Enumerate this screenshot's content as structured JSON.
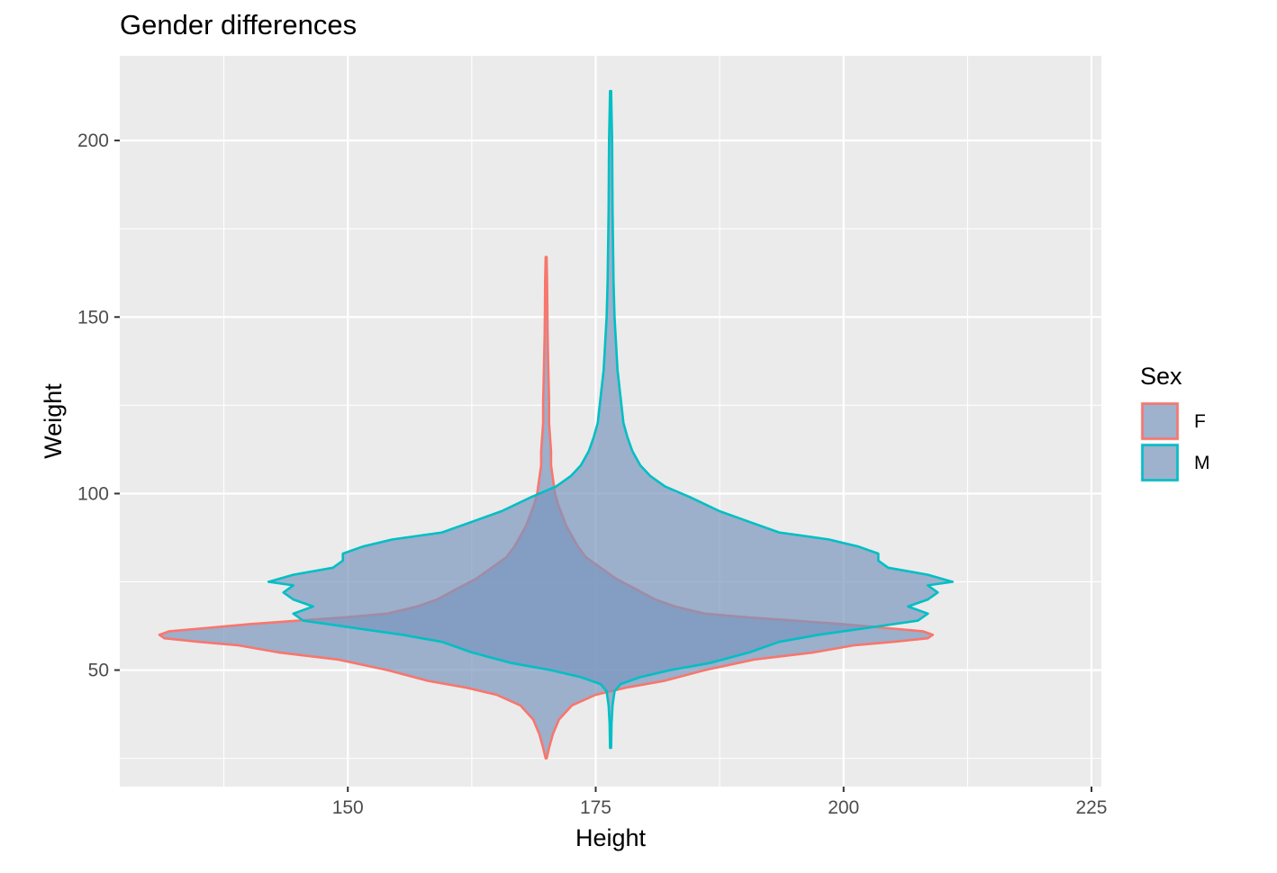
{
  "chart_data": {
    "type": "violin",
    "title": "Gender differences",
    "xlabel": "Height",
    "ylabel": "Weight",
    "xlim": [
      127,
      226
    ],
    "ylim": [
      17,
      224
    ],
    "x_ticks": [
      150,
      175,
      200,
      225
    ],
    "y_ticks": [
      50,
      100,
      150,
      200
    ],
    "x_tick_labels": [
      "150",
      "175",
      "200",
      "225"
    ],
    "y_tick_labels": [
      "50",
      "100",
      "150",
      "200"
    ],
    "grid": true,
    "legend": {
      "title": "Sex",
      "position": "right"
    },
    "fill_color": "#7b96be",
    "fill_opacity": 0.7,
    "series": [
      {
        "name": "F",
        "outline_color": "#f8766d",
        "center_x": 170,
        "profile_weight": [
          25,
          28,
          32,
          36,
          40,
          43,
          45,
          47,
          50,
          53,
          55,
          57,
          58,
          59,
          60,
          61,
          62,
          63,
          64,
          65,
          66,
          68,
          70,
          73,
          76,
          79,
          82,
          85,
          88,
          91,
          94,
          97,
          100,
          104,
          108,
          112,
          116,
          120,
          126,
          132,
          138,
          145,
          152,
          160,
          167
        ],
        "profile_half_width": [
          0.05,
          0.3,
          0.7,
          1.3,
          2.6,
          5,
          8,
          12,
          16,
          21,
          27,
          31,
          35,
          38.5,
          39,
          38,
          34,
          30,
          25,
          20,
          16,
          13,
          11,
          9,
          7,
          5.5,
          4,
          3.2,
          2.6,
          2,
          1.6,
          1.2,
          0.9,
          0.7,
          0.5,
          0.5,
          0.4,
          0.3,
          0.3,
          0.25,
          0.2,
          0.15,
          0.12,
          0.1,
          0.05
        ]
      },
      {
        "name": "M",
        "outline_color": "#00bfc4",
        "center_x": 176.5,
        "profile_weight": [
          28,
          35,
          40,
          44,
          46,
          48,
          50,
          52,
          55,
          58,
          60,
          62,
          64,
          66,
          68,
          70,
          72,
          74,
          75,
          77,
          79,
          81,
          83,
          85,
          87,
          89,
          92,
          95,
          99,
          102,
          105,
          108,
          112,
          116,
          120,
          125,
          130,
          135,
          140,
          150,
          160,
          180,
          200,
          214
        ],
        "profile_half_width": [
          0.05,
          0.1,
          0.2,
          0.4,
          1,
          3,
          6,
          10,
          14,
          17,
          21,
          26,
          31,
          32,
          30,
          32,
          33,
          32,
          34.5,
          32,
          28,
          27,
          27,
          25,
          22,
          17,
          14,
          11,
          8,
          5.5,
          4,
          3,
          2.2,
          1.7,
          1.3,
          1.1,
          0.9,
          0.7,
          0.6,
          0.4,
          0.3,
          0.2,
          0.15,
          0.05
        ]
      }
    ]
  }
}
